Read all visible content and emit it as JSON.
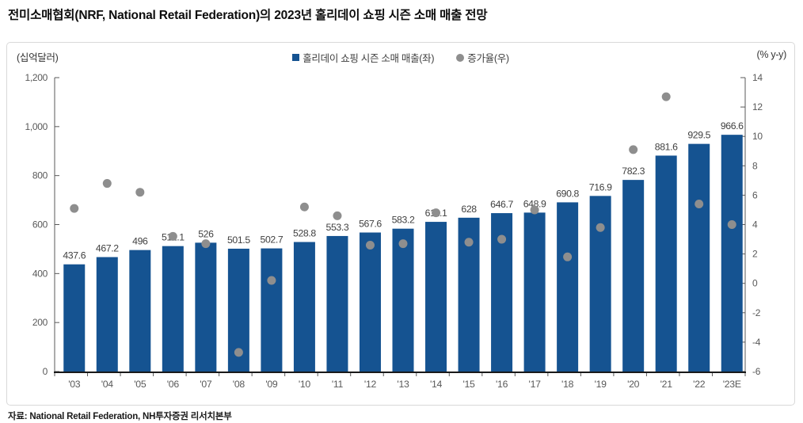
{
  "title": "전미소매협회(NRF, National Retail Federation)의 2023년 홀리데이 쇼핑 시즌 소매 매출 전망",
  "source": "자료: National Retail Federation, NH투자증권 리서치본부",
  "chart_data": {
    "type": "bar",
    "title": "",
    "categories": [
      "'03",
      "'04",
      "'05",
      "'06",
      "'07",
      "'08",
      "'09",
      "'10",
      "'11",
      "'12",
      "'13",
      "'14",
      "'15",
      "'16",
      "'17",
      "'18",
      "'19",
      "'20",
      "'21",
      "'22",
      "'23E"
    ],
    "series": [
      {
        "name": "홀리데이 쇼핑 시즌 소매 매출(좌)",
        "type": "bar",
        "axis": "left",
        "color": "#155391",
        "values": [
          437.6,
          467.2,
          496,
          512.1,
          526,
          501.5,
          502.7,
          528.8,
          553.3,
          567.6,
          583.2,
          611.1,
          628,
          646.7,
          648.9,
          690.8,
          716.9,
          782.3,
          881.6,
          929.5,
          966.6
        ],
        "labels": [
          "437.6",
          "467.2",
          "496",
          "512.1",
          "526",
          "501.5",
          "502.7",
          "528.8",
          "553.3",
          "567.6",
          "583.2",
          "611.1",
          "628",
          "646.7",
          "648.9",
          "690.8",
          "716.9",
          "782.3",
          "881.6",
          "929.5",
          "966.6"
        ]
      },
      {
        "name": "증가율(우)",
        "type": "scatter",
        "axis": "right",
        "color": "#8e8e8e",
        "values": [
          5.1,
          6.8,
          6.2,
          3.2,
          2.7,
          -4.7,
          0.2,
          5.2,
          4.6,
          2.6,
          2.7,
          4.8,
          2.8,
          3.0,
          5.0,
          1.8,
          3.8,
          9.1,
          12.7,
          5.4,
          4.0
        ]
      }
    ],
    "left_axis": {
      "label": "(십억달러)",
      "min": 0,
      "max": 1200,
      "step": 200
    },
    "right_axis": {
      "label": "(% y-y)",
      "min": -6,
      "max": 14,
      "step": 2
    },
    "legend_position": "top-center",
    "grid": false
  }
}
